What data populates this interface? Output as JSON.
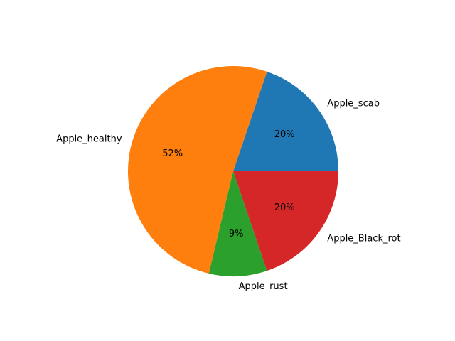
{
  "chart_data": {
    "type": "pie",
    "slices": [
      {
        "label": "Apple_scab",
        "value": 20,
        "pct_text": "20%",
        "color": "#1f77b4"
      },
      {
        "label": "Apple_healthy",
        "value": 52,
        "pct_text": "52%",
        "color": "#ff7f0e"
      },
      {
        "label": "Apple_rust",
        "value": 9,
        "pct_text": "9%",
        "color": "#2ca02c"
      },
      {
        "label": "Apple_Black_rot",
        "value": 20,
        "pct_text": "20%",
        "color": "#d62728"
      }
    ],
    "start_angle_deg": 0,
    "direction": "counterclockwise"
  }
}
